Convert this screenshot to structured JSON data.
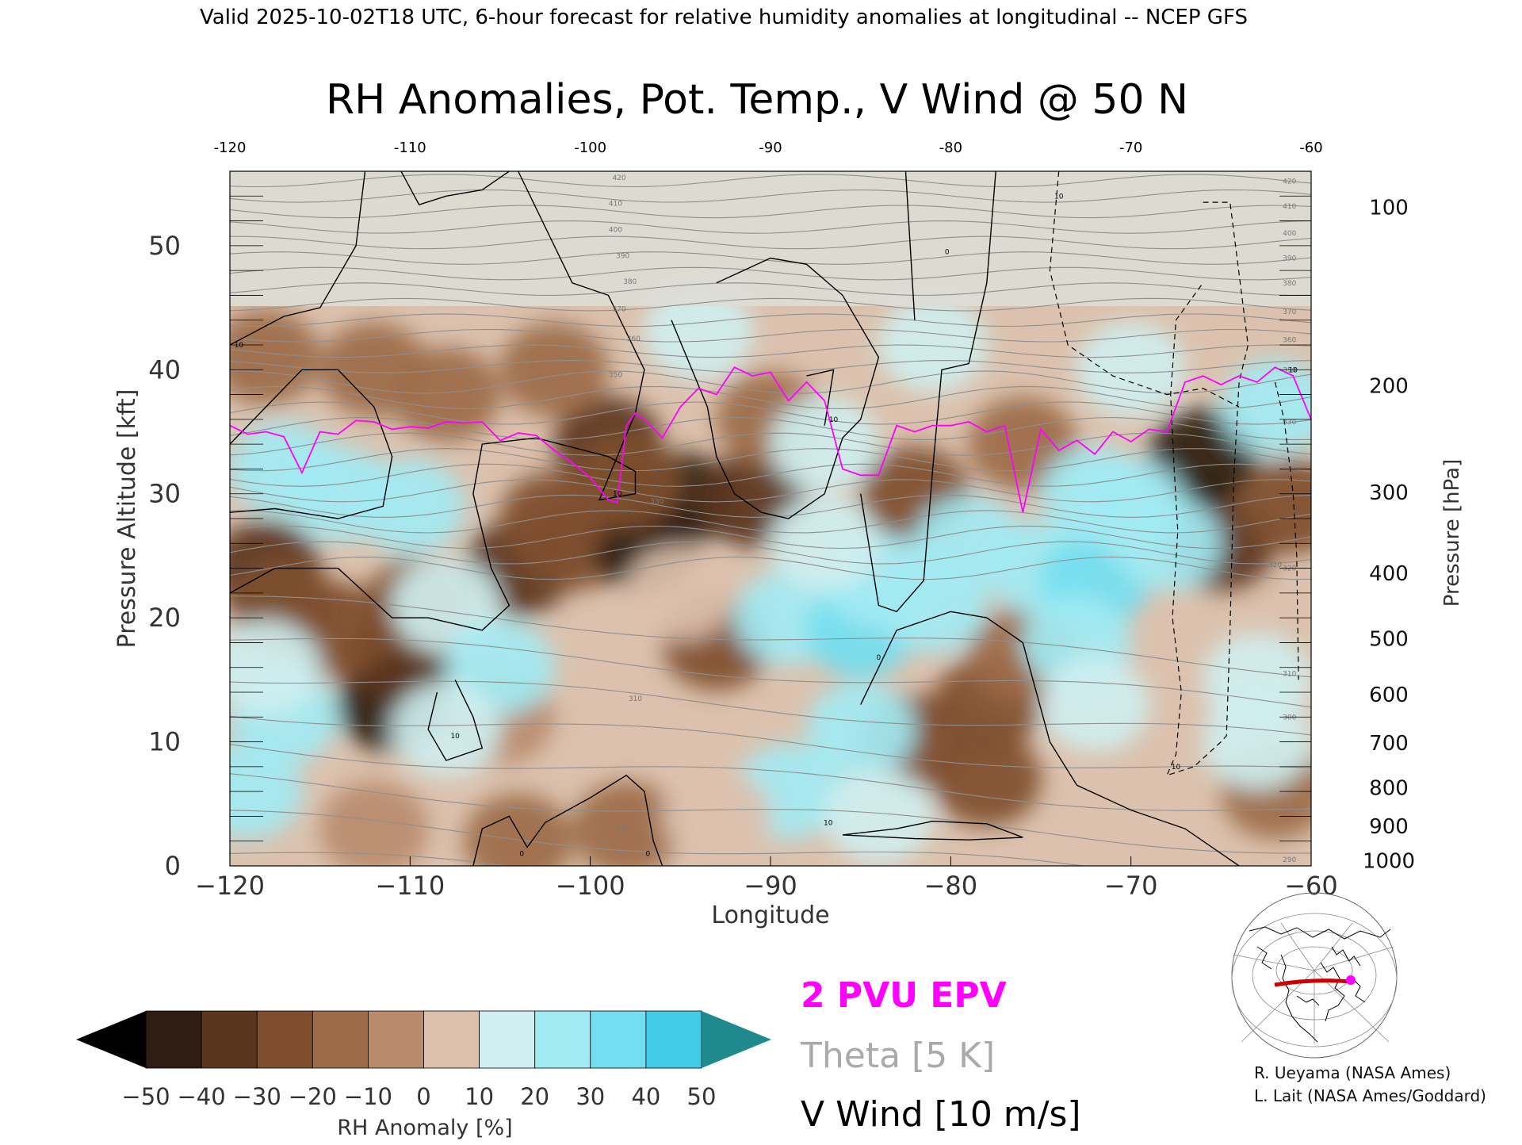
{
  "header": {
    "valid_line": "Valid 2025-10-02T18 UTC, 6-hour forecast for relative humidity anomalies at longitudinal -- NCEP GFS"
  },
  "chart_data": {
    "type": "heatmap",
    "title": "RH Anomalies, Pot. Temp., V Wind @ 50 N",
    "xlabel": "Longitude",
    "ylabel_left": "Pressure Altitude [kft]",
    "ylabel_right": "Pressure [hPa]",
    "xlim": [
      -120,
      -60
    ],
    "ylim": [
      0,
      56
    ],
    "x_ticks": [
      -120,
      -110,
      -100,
      -90,
      -80,
      -70,
      -60
    ],
    "x_tick_labels": [
      "−120",
      "−110",
      "−100",
      "−90",
      "−80",
      "−70",
      "−60"
    ],
    "x_top_tick_labels": [
      "-120",
      "-110",
      "-100",
      "-90",
      "-80",
      "-70",
      "-60"
    ],
    "y_ticks": [
      0,
      10,
      20,
      30,
      40,
      50
    ],
    "y_tick_labels": [
      "0",
      "10",
      "20",
      "30",
      "40",
      "50"
    ],
    "pressure_ticks": [
      {
        "hPa": 1000,
        "kft": 0.4,
        "label": "1000"
      },
      {
        "hPa": 900,
        "kft": 3.2,
        "label": "900"
      },
      {
        "hPa": 800,
        "kft": 6.3,
        "label": "800"
      },
      {
        "hPa": 700,
        "kft": 9.9,
        "label": "700"
      },
      {
        "hPa": 600,
        "kft": 13.8,
        "label": "600"
      },
      {
        "hPa": 500,
        "kft": 18.3,
        "label": "500"
      },
      {
        "hPa": 400,
        "kft": 23.6,
        "label": "400"
      },
      {
        "hPa": 300,
        "kft": 30.1,
        "label": "300"
      },
      {
        "hPa": 200,
        "kft": 38.7,
        "label": "200"
      },
      {
        "hPa": 100,
        "kft": 53.1,
        "label": "100"
      }
    ],
    "theta_labels": [
      "420",
      "410",
      "400",
      "390",
      "380",
      "370",
      "360",
      "350",
      "330",
      "320",
      "310",
      "300"
    ],
    "theta_right_labels": [
      "420",
      "410",
      "400",
      "390",
      "380",
      "370",
      "360",
      "350",
      "330",
      "320",
      "310",
      "300",
      "290"
    ],
    "vwind_labels": [
      "10",
      "0"
    ],
    "colorbar": {
      "label": "RH Anomaly [%]",
      "ticks": [
        -50,
        -40,
        -30,
        -20,
        -10,
        0,
        10,
        20,
        30,
        40,
        50
      ],
      "tick_labels": [
        "−50",
        "−40",
        "−30",
        "−20",
        "−10",
        "0",
        "10",
        "20",
        "30",
        "40",
        "50"
      ],
      "colors": [
        "#2e1d12",
        "#5a351d",
        "#7e4e2e",
        "#9c6b48",
        "#b98b6c",
        "#dcc0ac",
        "#cfeff0",
        "#a2eaf3",
        "#72def0",
        "#42cbe6",
        "#1fa5c5"
      ],
      "under_color": "#000000",
      "over_color": "#1e8a8e"
    },
    "series": [
      {
        "name": "2 PVU EPV",
        "color": "#ff00ff",
        "x": [
          -120,
          -119,
          -118,
          -117,
          -116,
          -115,
          -114,
          -113,
          -112,
          -111,
          -110,
          -109,
          -108,
          -107,
          -106,
          -105,
          -104,
          -103,
          -102,
          -101,
          -100,
          -99,
          -98.5,
          -98,
          -97.5,
          -97,
          -96,
          -95,
          -94,
          -93,
          -92,
          -91,
          -90,
          -89,
          -88,
          -87,
          -86,
          -85,
          -84,
          -83,
          -82,
          -81,
          -80,
          -79,
          -78,
          -77,
          -76,
          -75,
          -74,
          -73,
          -72,
          -71,
          -70,
          -69,
          -68,
          -67,
          -66,
          -65,
          -64,
          -63,
          -62,
          -61,
          -60
        ],
        "y": [
          35.5,
          34.8,
          35,
          34.6,
          31.7,
          35,
          34.8,
          35.9,
          35.8,
          35.2,
          35.4,
          35.3,
          35.8,
          35.7,
          35.8,
          34.3,
          34.9,
          34.7,
          33.5,
          32.5,
          31.3,
          29.5,
          29.3,
          35.5,
          36.5,
          36,
          34.5,
          37,
          38.5,
          38,
          40.2,
          39.5,
          39.8,
          37.5,
          39,
          37.5,
          32,
          31.5,
          31.5,
          35.5,
          35,
          35.5,
          35.5,
          35.8,
          35,
          35.5,
          28.5,
          35.2,
          33.5,
          34.3,
          33.2,
          35,
          34.2,
          35.2,
          35,
          39,
          39.5,
          38.8,
          39.5,
          39,
          40.2,
          39.5,
          36
        ]
      },
      {
        "name": "Theta [5 K]",
        "color": "#9a9a9a",
        "interval": 5
      },
      {
        "name": "V Wind [10 m/s]",
        "color": "#000000",
        "interval": 10
      }
    ],
    "hotspots": [
      {
        "x": -112,
        "y": 18,
        "v": -54
      },
      {
        "x": -65.5,
        "y": 29.8,
        "v": -56
      },
      {
        "x": -111,
        "y": 13,
        "v": -42
      },
      {
        "x": -110.5,
        "y": 17,
        "v": -38
      },
      {
        "x": -109.5,
        "y": 21,
        "v": -30
      },
      {
        "x": -114,
        "y": 19,
        "v": -30
      },
      {
        "x": -118,
        "y": 24,
        "v": -32
      },
      {
        "x": -117,
        "y": 21,
        "v": -22
      },
      {
        "x": -104,
        "y": 24,
        "v": -36
      },
      {
        "x": -101,
        "y": 26,
        "v": -30
      },
      {
        "x": -99,
        "y": 34,
        "v": -36
      },
      {
        "x": -97,
        "y": 26,
        "v": -42
      },
      {
        "x": -95,
        "y": 29.5,
        "v": -42
      },
      {
        "x": -91,
        "y": 29.5,
        "v": -40
      },
      {
        "x": -93,
        "y": 18,
        "v": -30
      },
      {
        "x": -98,
        "y": 31,
        "v": -28
      },
      {
        "x": -102,
        "y": 28,
        "v": -22
      },
      {
        "x": -65,
        "y": 26,
        "v": -40
      },
      {
        "x": -66,
        "y": 33,
        "v": -42
      },
      {
        "x": -61,
        "y": 29,
        "v": -28
      },
      {
        "x": -62,
        "y": 6,
        "v": -18
      },
      {
        "x": -78,
        "y": 13,
        "v": -22
      },
      {
        "x": -78,
        "y": 7,
        "v": -30
      },
      {
        "x": -82,
        "y": 10,
        "v": -26
      },
      {
        "x": -76,
        "y": 17,
        "v": -16
      },
      {
        "x": -82,
        "y": 30,
        "v": -22
      },
      {
        "x": -76,
        "y": 34,
        "v": -20
      },
      {
        "x": -98,
        "y": 3,
        "v": -20
      },
      {
        "x": -104,
        "y": 2,
        "v": -14
      },
      {
        "x": -112,
        "y": 3,
        "v": -10
      },
      {
        "x": -90,
        "y": 36,
        "v": -12
      },
      {
        "x": -102,
        "y": 40,
        "v": -15
      },
      {
        "x": -112,
        "y": 40,
        "v": -16
      },
      {
        "x": -118,
        "y": 41,
        "v": -14
      },
      {
        "x": -108,
        "y": 38,
        "v": -12
      },
      {
        "x": -105,
        "y": 12,
        "v": -8
      },
      {
        "x": -119,
        "y": 6,
        "v": 22
      },
      {
        "x": -117,
        "y": 12,
        "v": 22
      },
      {
        "x": -118,
        "y": 16,
        "v": 16
      },
      {
        "x": -114,
        "y": 30,
        "v": 26
      },
      {
        "x": -110,
        "y": 29,
        "v": 28
      },
      {
        "x": -117,
        "y": 32,
        "v": 20
      },
      {
        "x": -108,
        "y": 21,
        "v": 14
      },
      {
        "x": -105,
        "y": 16,
        "v": 20
      },
      {
        "x": -108,
        "y": 11,
        "v": 12
      },
      {
        "x": -89,
        "y": 20,
        "v": 22
      },
      {
        "x": -89,
        "y": 6,
        "v": 25
      },
      {
        "x": -85,
        "y": 19,
        "v": 35
      },
      {
        "x": -85,
        "y": 11,
        "v": 26
      },
      {
        "x": -84,
        "y": 23,
        "v": 28
      },
      {
        "x": -81,
        "y": 21,
        "v": 24
      },
      {
        "x": -79,
        "y": 26,
        "v": 24
      },
      {
        "x": -75,
        "y": 24,
        "v": 28
      },
      {
        "x": -72,
        "y": 23,
        "v": 32
      },
      {
        "x": -73,
        "y": 18,
        "v": 24
      },
      {
        "x": -72,
        "y": 13,
        "v": 18
      },
      {
        "x": -70,
        "y": 29,
        "v": 24
      },
      {
        "x": -72,
        "y": 30,
        "v": 20
      },
      {
        "x": -68,
        "y": 26,
        "v": 22
      },
      {
        "x": -70,
        "y": 40,
        "v": 18
      },
      {
        "x": -62,
        "y": 37,
        "v": 24
      },
      {
        "x": -63,
        "y": 15,
        "v": 18
      },
      {
        "x": -63,
        "y": 10,
        "v": 14
      },
      {
        "x": -81,
        "y": 42,
        "v": 10
      },
      {
        "x": -94,
        "y": 43,
        "v": 12
      },
      {
        "x": -87,
        "y": 34,
        "v": 10
      },
      {
        "x": -87,
        "y": 26,
        "v": 14
      },
      {
        "x": -84,
        "y": 4,
        "v": 12
      },
      {
        "x": -93,
        "y": 4,
        "v": 8
      },
      {
        "x": -95,
        "y": 22,
        "v": 6
      }
    ]
  },
  "legend": {
    "epv": "2 PVU EPV",
    "theta": "Theta [5 K]",
    "vwind": "V Wind [10 m/s]"
  },
  "credits": {
    "line1": "R. Ueyama (NASA Ames)",
    "line2": "L. Lait (NASA Ames/Goddard)"
  }
}
